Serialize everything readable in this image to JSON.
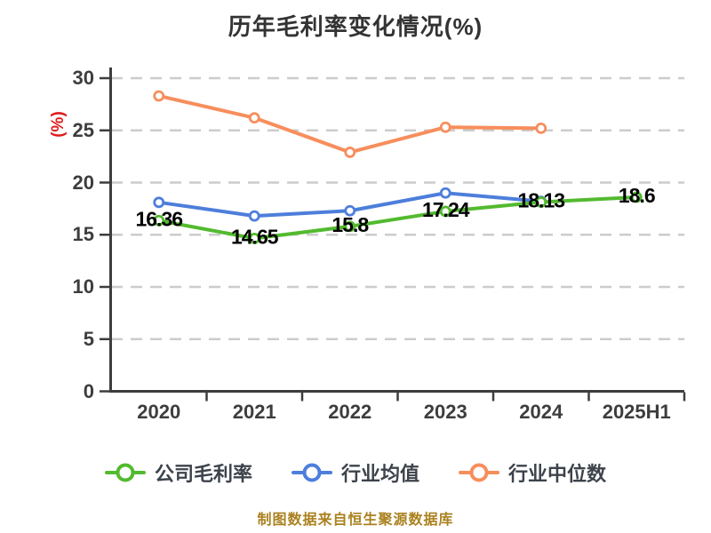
{
  "chart_data": {
    "type": "line",
    "title": "历年毛利率变化情况(%)",
    "ylabel": "(%)",
    "footnote": "制图数据来自恒生聚源数据库",
    "categories": [
      "2020",
      "2021",
      "2022",
      "2023",
      "2024",
      "2025H1"
    ],
    "ylim": [
      0,
      30
    ],
    "yticks": [
      0,
      5,
      10,
      15,
      20,
      25,
      30
    ],
    "grid": "horizontal-dashed",
    "legend_position": "bottom",
    "series": [
      {
        "id": "company-gross-margin",
        "name": "公司毛利率",
        "color": "#53ba2f",
        "values": [
          16.36,
          14.65,
          15.8,
          17.24,
          18.13,
          18.6
        ],
        "labels": [
          "16.36",
          "14.65",
          "15.8",
          "17.24",
          "18.13",
          "18.6"
        ]
      },
      {
        "id": "industry-average",
        "name": "行业均值",
        "color": "#4d7edb",
        "values": [
          18.1,
          16.8,
          17.3,
          19.0,
          18.2,
          null
        ],
        "labels": null
      },
      {
        "id": "industry-median",
        "name": "行业中位数",
        "color": "#f78e5c",
        "values": [
          28.3,
          26.2,
          22.9,
          25.3,
          25.2,
          null
        ],
        "labels": null
      }
    ]
  },
  "styles": {
    "background": "#ffffff",
    "title_color": "#333333",
    "accent_red": "#e01b1b",
    "axis_color": "#3d3d3d",
    "grid_color": "#cccccc",
    "label_color": "#000000",
    "legend_text_color": "#3d434b",
    "footnote_color": "#aa811f"
  }
}
